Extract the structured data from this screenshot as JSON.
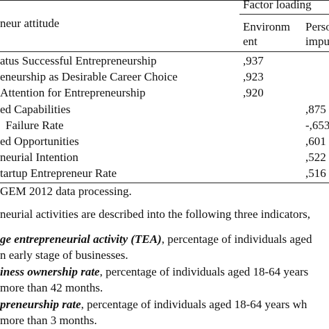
{
  "table": {
    "header_group": "Factor loading",
    "row_header": "neur attitude",
    "col1_line1": "Environm",
    "col1_line2": "ent",
    "col2_line1": "Perso",
    "col2_line2": "impu",
    "rows": [
      {
        "label": "atus Successful Entrepreneurship",
        "env": ",937",
        "pers": ""
      },
      {
        "label": "eneurship as Desirable Career Choice",
        "env": ",923",
        "pers": ""
      },
      {
        "label": "Attention for Entrepreneurship",
        "env": ",920",
        "pers": ""
      },
      {
        "label": "ed Capabilities",
        "env": "",
        "pers": ",875"
      },
      {
        "label": "Failure Rate",
        "env": "",
        "pers": "-,653"
      },
      {
        "label": "ed Opportunities",
        "env": "",
        "pers": ",601"
      },
      {
        "label": "neurial Intention",
        "env": "",
        "pers": ",522"
      },
      {
        "label": "tartup Entrepreneur Rate",
        "env": "",
        "pers": ",516"
      }
    ]
  },
  "notes": {
    "source": " GEM 2012 data processing.",
    "intro": "neurial activities are described into the following three indicators,",
    "item1_em": "ge entrepreneurial activity (TEA)",
    "item1_rest": ", percentage of individuals aged",
    "item1_cont": "n early stage of businesses.",
    "item2_em": "iness ownership rate",
    "item2_rest": ", percentage of individuals aged 18-64 years",
    "item2_cont": "more than 42 months.",
    "item3_em": "preneurship rate",
    "item3_rest": ", percentage of individuals aged 18-64 years wh",
    "item3_cont": "more than 3 months."
  }
}
